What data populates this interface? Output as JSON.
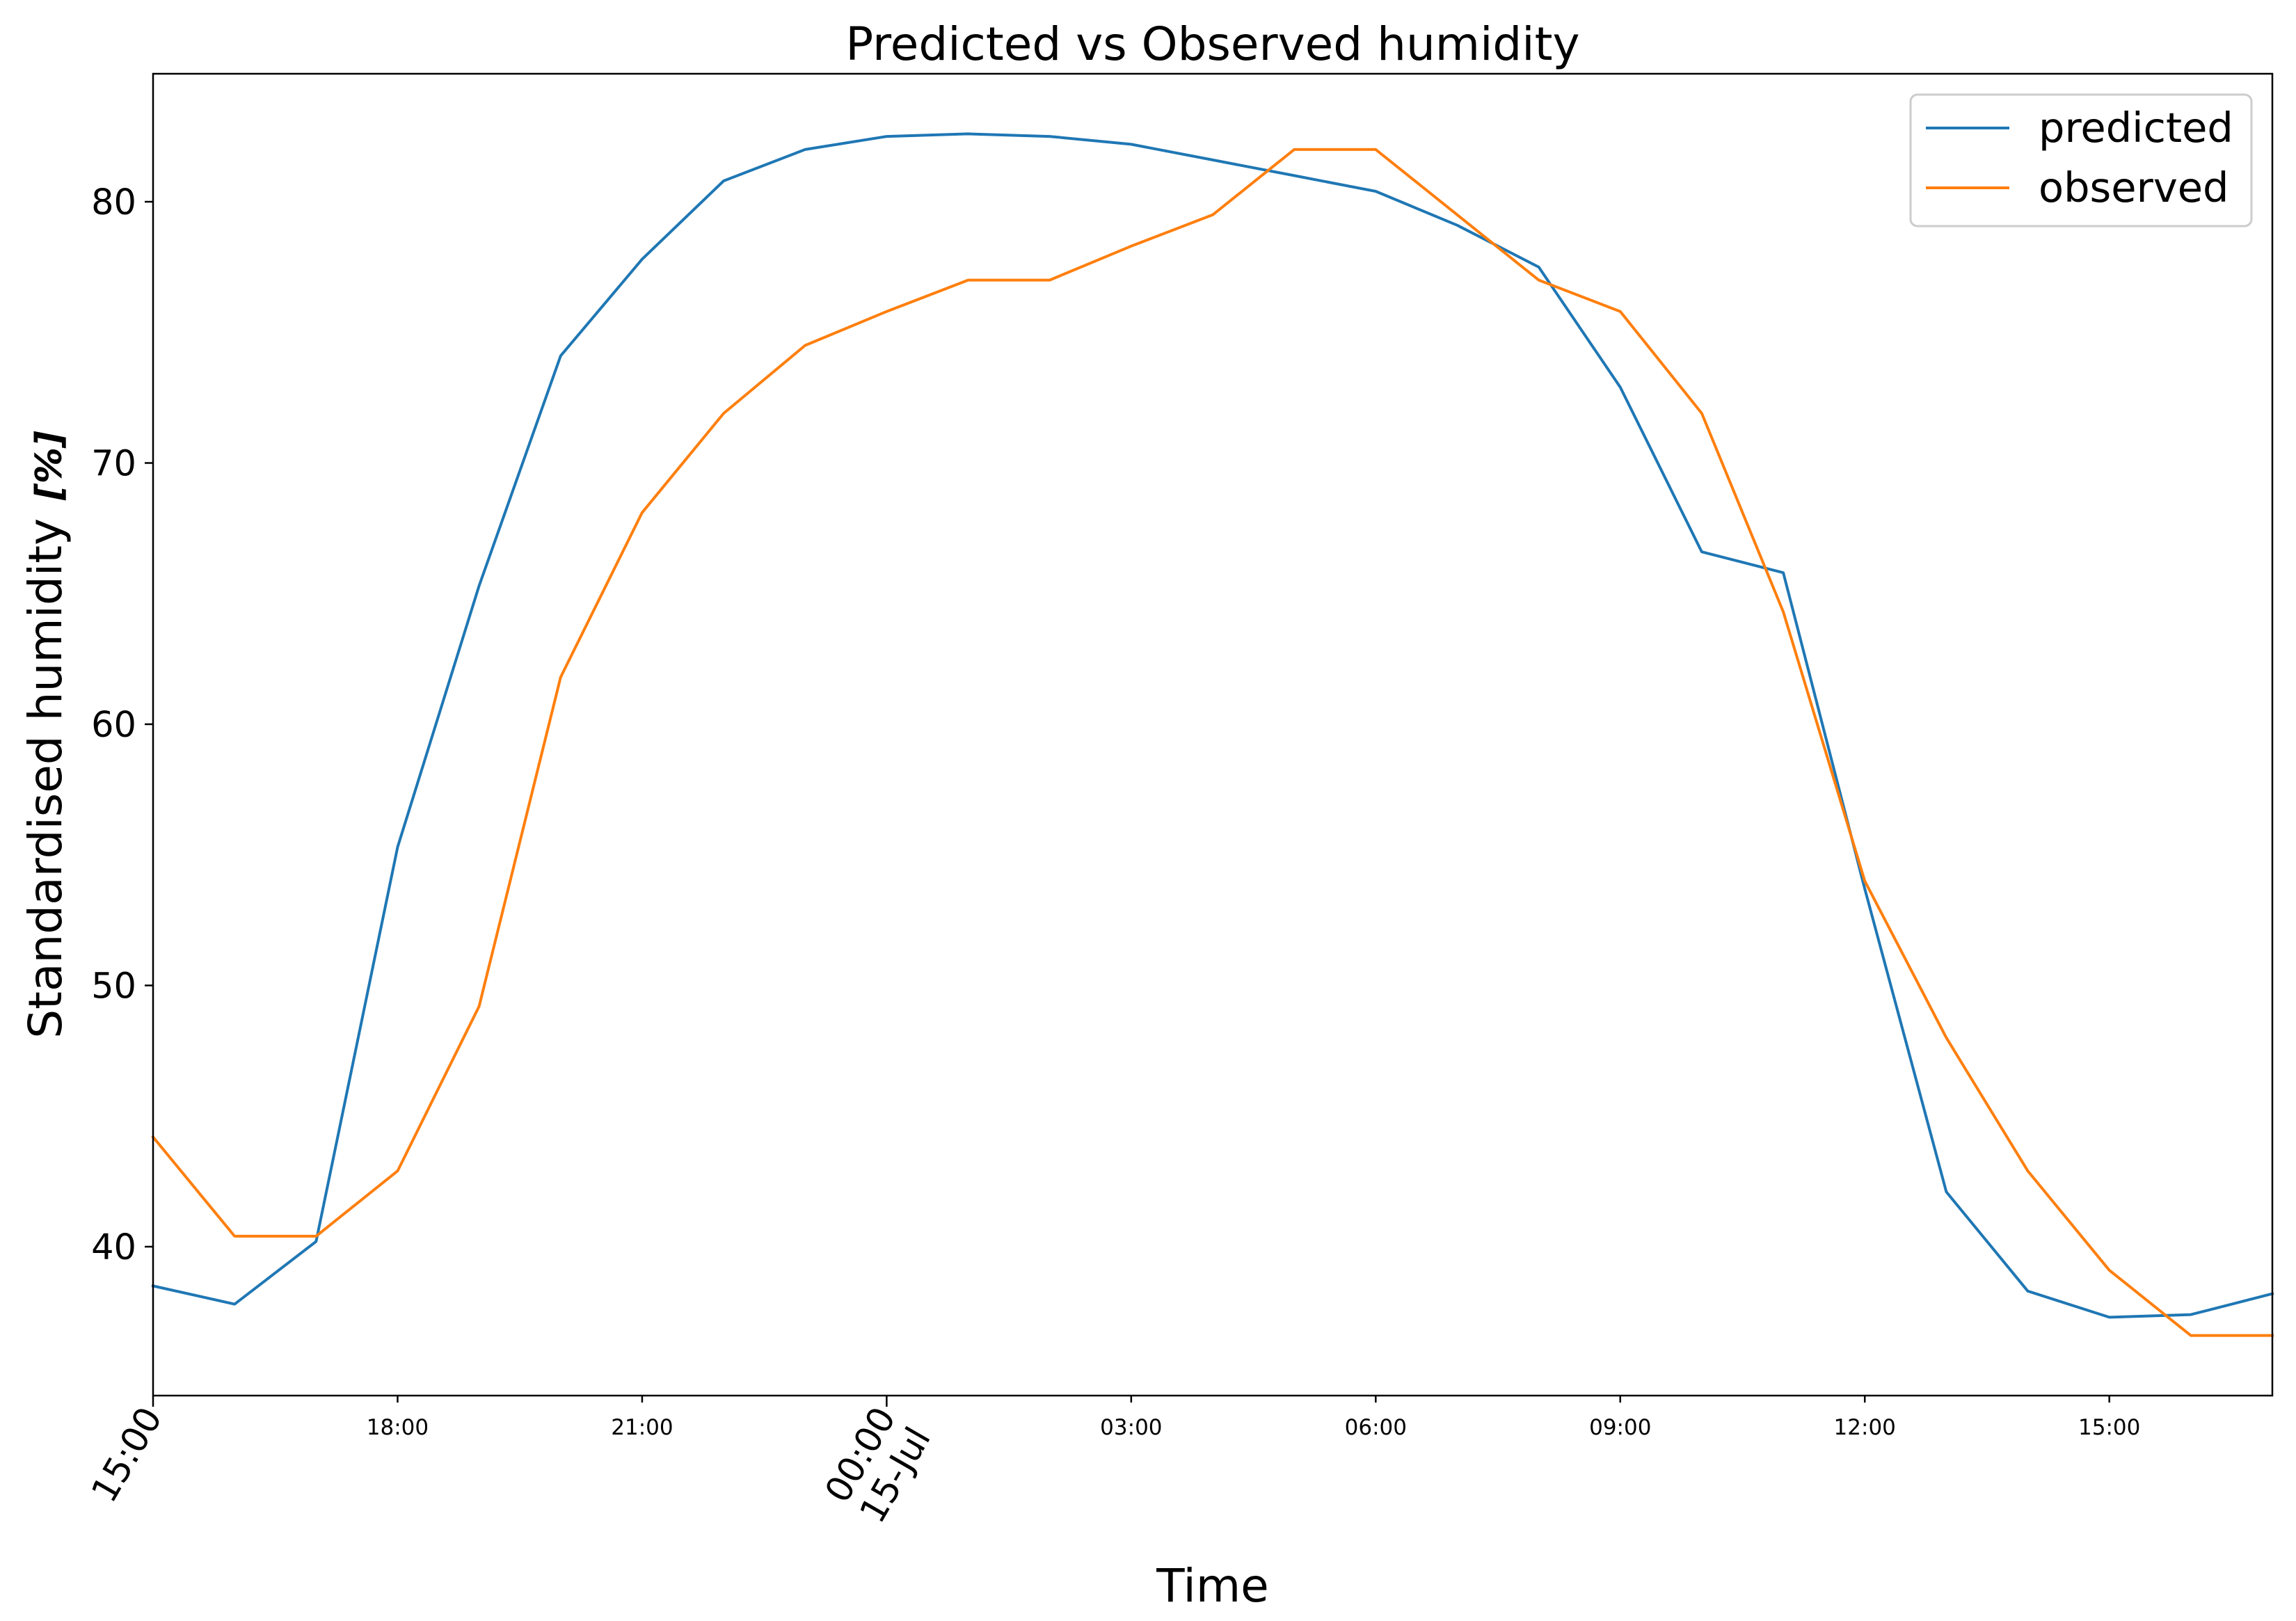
{
  "chart_data": {
    "type": "line",
    "title": "Predicted vs Observed humidity",
    "xlabel": "Time",
    "ylabel": "Standardised humidity",
    "ylabel_unit": "[%]",
    "x_start": "14-Jul 15:00",
    "x_step": "1 hour",
    "xlim": [
      "14-Jul 15:00",
      "15-Jul 17:00"
    ],
    "ylim": [
      34.3,
      84.9
    ],
    "yticks": [
      40,
      50,
      60,
      70,
      80
    ],
    "xticks": [
      {
        "label": "15:00",
        "major": true
      },
      {
        "label": "18:00",
        "major": false
      },
      {
        "label": "21:00",
        "major": false
      },
      {
        "label": "00:00\n15-Jul",
        "major": true
      },
      {
        "label": "03:00",
        "major": false
      },
      {
        "label": "06:00",
        "major": false
      },
      {
        "label": "09:00",
        "major": false
      },
      {
        "label": "12:00",
        "major": false
      },
      {
        "label": "15:00",
        "major": false
      }
    ],
    "grid": false,
    "legend_position": "top-right",
    "series": [
      {
        "name": "predicted",
        "color": "#1f77b4",
        "values": [
          38.5,
          37.8,
          40.2,
          55.3,
          65.3,
          74.1,
          77.8,
          80.8,
          82.0,
          82.5,
          82.6,
          82.5,
          82.2,
          81.6,
          81.0,
          80.4,
          79.1,
          77.5,
          72.9,
          66.6,
          65.8,
          53.7,
          42.1,
          38.3,
          37.3,
          37.4,
          38.2
        ]
      },
      {
        "name": "observed",
        "color": "#ff7f0e",
        "values": [
          44.2,
          40.4,
          40.4,
          42.9,
          49.2,
          61.8,
          68.1,
          71.9,
          74.5,
          75.8,
          77.0,
          77.0,
          78.3,
          79.5,
          82.0,
          82.0,
          79.5,
          77.0,
          75.8,
          71.9,
          64.3,
          54.0,
          48.0,
          42.9,
          39.1,
          36.6,
          36.6
        ]
      }
    ]
  }
}
